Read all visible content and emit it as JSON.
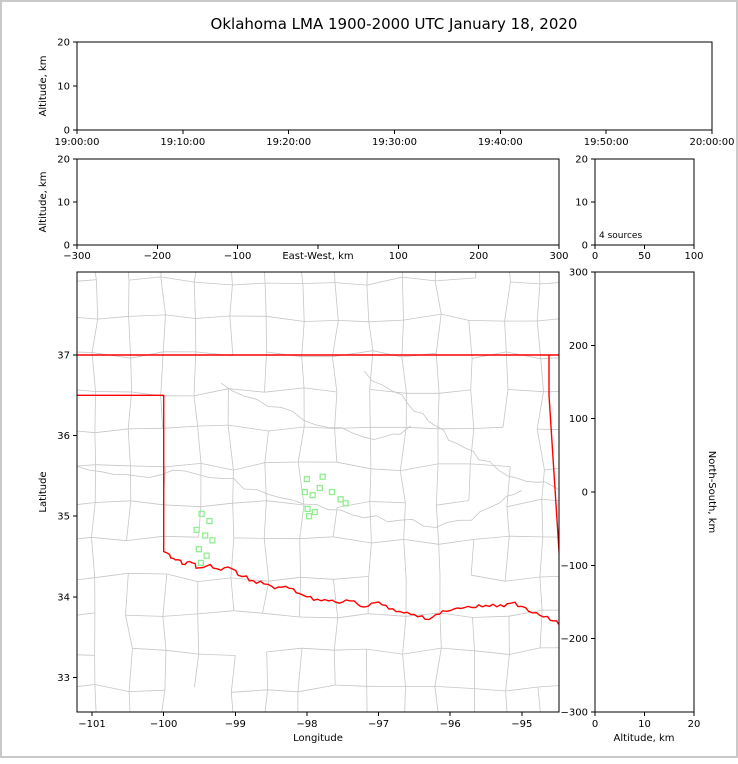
{
  "title": "Oklahoma LMA 1900-2000 UTC January 18, 2020",
  "chart_data": [
    {
      "id": "time_altitude",
      "type": "scatter",
      "ylabel": "Altitude, km",
      "ylim": [
        0,
        20
      ],
      "yticks": [
        0,
        10,
        20
      ],
      "xtick_labels": [
        "19:00:00",
        "19:10:00",
        "19:20:00",
        "19:30:00",
        "19:40:00",
        "19:50:00",
        "20:00:00"
      ],
      "points": []
    },
    {
      "id": "ew_altitude",
      "type": "scatter",
      "xlabel": "East-West, km",
      "ylabel": "Altitude, km",
      "xlim": [
        -300,
        300
      ],
      "xtick_marks": [
        -300,
        -200,
        -100,
        0,
        100,
        200,
        300
      ],
      "xtick_labels": [
        -300,
        -200,
        -100,
        100,
        200,
        300
      ],
      "ylim": [
        0,
        20
      ],
      "yticks": [
        0,
        10,
        20
      ],
      "points": []
    },
    {
      "id": "source_histogram",
      "type": "line",
      "annotation": "4 sources",
      "xlim": [
        0,
        100
      ],
      "xticks": [
        0,
        50,
        100
      ],
      "ylim": [
        0,
        20
      ],
      "yticks": [
        0,
        10,
        20
      ],
      "points": []
    },
    {
      "id": "plan_view_map",
      "type": "scatter",
      "xlabel": "Longitude",
      "ylabel": "Latitude",
      "xlim": [
        -101.21,
        -94.48
      ],
      "ylim": [
        32.57,
        38.03
      ],
      "xticks": [
        -101,
        -100,
        -99,
        -98,
        -97,
        -96,
        -95
      ],
      "yticks": [
        33,
        34,
        35,
        36,
        37
      ],
      "series": [
        {
          "name": "lma-stations",
          "marker": "open-square",
          "color": "#90ee90",
          "points": [
            [
              -98.0,
              35.46
            ],
            [
              -97.78,
              35.49
            ],
            [
              -98.03,
              35.3
            ],
            [
              -97.92,
              35.26
            ],
            [
              -97.82,
              35.35
            ],
            [
              -97.65,
              35.3
            ],
            [
              -97.99,
              35.09
            ],
            [
              -97.89,
              35.05
            ],
            [
              -97.53,
              35.21
            ],
            [
              -97.46,
              35.16
            ],
            [
              -97.97,
              35.0
            ],
            [
              -99.47,
              35.03
            ],
            [
              -99.36,
              34.94
            ],
            [
              -99.54,
              34.83
            ],
            [
              -99.42,
              34.76
            ],
            [
              -99.32,
              34.7
            ],
            [
              -99.51,
              34.59
            ],
            [
              -99.4,
              34.51
            ],
            [
              -99.48,
              34.42
            ]
          ]
        }
      ]
    },
    {
      "id": "ns_altitude",
      "type": "scatter",
      "xlabel": "Altitude, km",
      "ylabel": "North-South, km",
      "xlim": [
        0,
        20
      ],
      "xticks": [
        0,
        10,
        20
      ],
      "ylim": [
        -300,
        300
      ],
      "yticks": [
        300,
        200,
        100,
        0,
        -100,
        -200,
        -300
      ],
      "points": []
    }
  ],
  "map_layers": {
    "county_color": "#c6c6c6",
    "river_color": "#c6c6c6",
    "state_border_color": "#ff0000",
    "station_color": "#90ee90",
    "grid_seed": 77,
    "state_border_straight": [
      [
        [
          -101.21,
          37.0
        ],
        [
          -94.48,
          37.0
        ]
      ],
      [
        [
          -101.21,
          36.5
        ],
        [
          -100.0,
          36.5
        ],
        [
          -100.0,
          34.56
        ]
      ],
      [
        [
          -94.62,
          37.0
        ],
        [
          -94.62,
          36.5
        ],
        [
          -94.43,
          33.87
        ]
      ]
    ],
    "red_river": [
      [
        -100.0,
        34.56
      ],
      [
        -99.9,
        34.48
      ],
      [
        -99.8,
        34.46
      ],
      [
        -99.7,
        34.4
      ],
      [
        -99.6,
        34.42
      ],
      [
        -99.5,
        34.36
      ],
      [
        -99.35,
        34.4
      ],
      [
        -99.2,
        34.33
      ],
      [
        -99.05,
        34.35
      ],
      [
        -98.9,
        34.25
      ],
      [
        -98.75,
        34.2
      ],
      [
        -98.6,
        34.16
      ],
      [
        -98.45,
        34.1
      ],
      [
        -98.3,
        34.13
      ],
      [
        -98.15,
        34.05
      ],
      [
        -98.0,
        34.0
      ],
      [
        -97.85,
        33.97
      ],
      [
        -97.7,
        33.95
      ],
      [
        -97.55,
        33.92
      ],
      [
        -97.4,
        33.95
      ],
      [
        -97.25,
        33.88
      ],
      [
        -97.1,
        33.92
      ],
      [
        -96.95,
        33.9
      ],
      [
        -96.8,
        33.85
      ],
      [
        -96.65,
        33.8
      ],
      [
        -96.5,
        33.78
      ],
      [
        -96.35,
        33.72
      ],
      [
        -96.2,
        33.78
      ],
      [
        -96.05,
        33.82
      ],
      [
        -95.9,
        33.86
      ],
      [
        -95.75,
        33.88
      ],
      [
        -95.6,
        33.9
      ],
      [
        -95.45,
        33.88
      ],
      [
        -95.3,
        33.9
      ],
      [
        -95.15,
        33.92
      ],
      [
        -95.0,
        33.88
      ],
      [
        -94.85,
        33.8
      ],
      [
        -94.7,
        33.75
      ],
      [
        -94.55,
        33.7
      ],
      [
        -94.45,
        33.67
      ]
    ],
    "rivers": [
      [
        [
          -101.21,
          35.62
        ],
        [
          -100.7,
          35.52
        ],
        [
          -100.2,
          35.48
        ],
        [
          -99.7,
          35.56
        ],
        [
          -99.2,
          35.47
        ],
        [
          -98.7,
          35.33
        ],
        [
          -98.2,
          35.2
        ],
        [
          -97.7,
          35.08
        ],
        [
          -97.2,
          34.98
        ],
        [
          -96.7,
          34.95
        ],
        [
          -96.2,
          34.86
        ],
        [
          -95.7,
          34.95
        ],
        [
          -95.3,
          35.17
        ],
        [
          -95.0,
          35.32
        ]
      ],
      [
        [
          -97.2,
          36.8
        ],
        [
          -96.8,
          36.55
        ],
        [
          -96.5,
          36.3
        ],
        [
          -96.2,
          36.12
        ],
        [
          -95.9,
          35.9
        ],
        [
          -95.6,
          35.7
        ],
        [
          -95.2,
          35.5
        ],
        [
          -94.8,
          35.42
        ],
        [
          -94.48,
          35.33
        ]
      ],
      [
        [
          -99.2,
          36.65
        ],
        [
          -98.7,
          36.45
        ],
        [
          -98.2,
          36.3
        ],
        [
          -97.7,
          36.1
        ],
        [
          -97.2,
          35.98
        ],
        [
          -96.8,
          36.02
        ],
        [
          -96.55,
          36.12
        ]
      ]
    ]
  }
}
